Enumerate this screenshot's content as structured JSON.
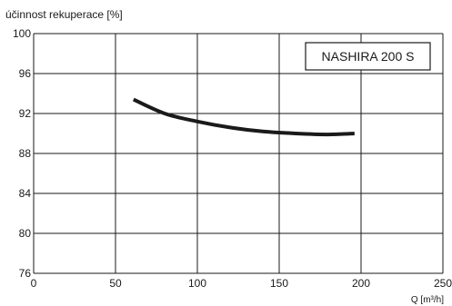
{
  "chart_data": {
    "type": "line",
    "title": "",
    "ylabel": "účinnost rekuperace [%]",
    "xlabel": "Q [m³/h]",
    "xlim": [
      0,
      250
    ],
    "ylim": [
      76,
      100
    ],
    "x_ticks": [
      0,
      50,
      100,
      150,
      200,
      250
    ],
    "y_ticks": [
      76,
      80,
      84,
      88,
      92,
      96,
      100
    ],
    "grid": true,
    "legend_box": "NASHIRA 200 S",
    "legend_position": "top-right",
    "series": [
      {
        "name": "NASHIRA 200 S",
        "color": "#1a1a1a",
        "x": [
          61,
          80,
          100,
          120,
          140,
          160,
          180,
          196
        ],
        "y": [
          93.4,
          92.0,
          91.2,
          90.6,
          90.2,
          90.0,
          89.9,
          90.0
        ]
      }
    ]
  }
}
